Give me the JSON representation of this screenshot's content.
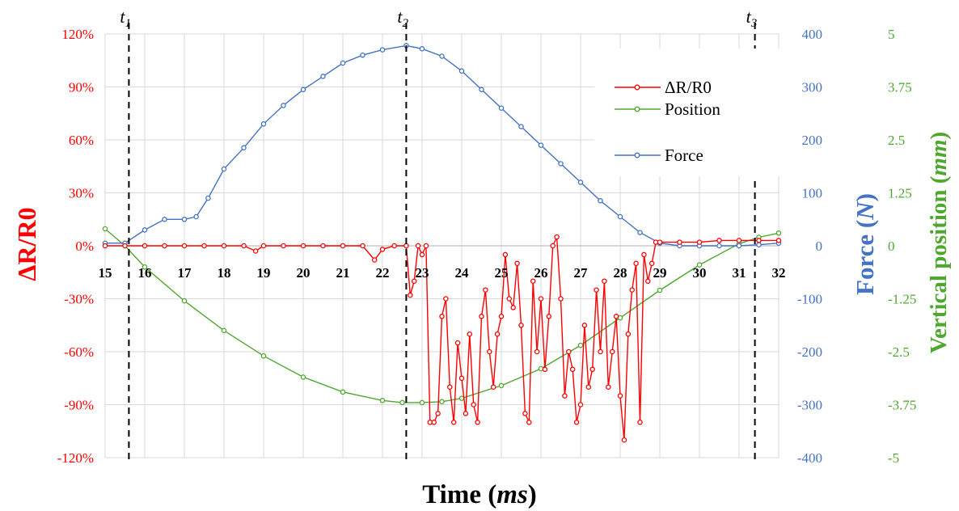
{
  "chart_data": {
    "type": "line",
    "xlabel": "Time",
    "xlabel_unit": "ms",
    "ylabel_left": "ΔR/R0",
    "ylabel_right1": "Force",
    "ylabel_right1_unit": "N",
    "ylabel_right2": "Vertical position",
    "ylabel_right2_unit": "mm",
    "xlim": [
      15,
      32
    ],
    "xticks": [
      "15",
      "16",
      "17",
      "18",
      "19",
      "20",
      "21",
      "22",
      "23",
      "24",
      "25",
      "26",
      "27",
      "28",
      "29",
      "30",
      "31",
      "32"
    ],
    "y_left_lim": [
      -120,
      120
    ],
    "y_left_ticks": [
      "120%",
      "90%",
      "60%",
      "30%",
      "0%",
      "-30%",
      "-60%",
      "-90%",
      "-120%"
    ],
    "y_right1_lim": [
      -400,
      400
    ],
    "y_right1_ticks": [
      "400",
      "300",
      "200",
      "100",
      "0",
      "-100",
      "-200",
      "-300",
      "-400"
    ],
    "y_right2_lim": [
      -5,
      5
    ],
    "y_right2_ticks": [
      "5",
      "3.75",
      "2.5",
      "1.25",
      "0",
      "-1.25",
      "-2.5",
      "-3.75",
      "-5"
    ],
    "grid": true,
    "legend_position": "top-right",
    "legend": [
      "ΔR/R0",
      "Position",
      "Force"
    ],
    "markers": [
      {
        "main": "t",
        "sub": "1",
        "x": 15.6
      },
      {
        "main": "t",
        "sub": "2",
        "x": 22.6
      },
      {
        "main": "t",
        "sub": "3",
        "x": 31.4
      }
    ],
    "series": [
      {
        "name": "ΔR/R0",
        "axis": "left",
        "color": "#ff0000",
        "x": [
          15.0,
          15.5,
          16.0,
          16.5,
          17.0,
          17.5,
          18.0,
          18.5,
          18.8,
          19.0,
          19.5,
          20.0,
          20.5,
          21.0,
          21.5,
          21.8,
          22.0,
          22.3,
          22.6,
          22.7,
          22.8,
          22.9,
          23.0,
          23.1,
          23.2,
          23.3,
          23.4,
          23.5,
          23.6,
          23.7,
          23.8,
          23.9,
          24.0,
          24.1,
          24.2,
          24.3,
          24.4,
          24.5,
          24.6,
          24.7,
          24.8,
          24.9,
          25.0,
          25.1,
          25.2,
          25.3,
          25.4,
          25.5,
          25.6,
          25.7,
          25.8,
          25.9,
          26.0,
          26.1,
          26.2,
          26.3,
          26.4,
          26.5,
          26.6,
          26.7,
          26.8,
          26.9,
          27.0,
          27.1,
          27.2,
          27.3,
          27.4,
          27.5,
          27.6,
          27.7,
          27.8,
          27.9,
          28.0,
          28.1,
          28.2,
          28.3,
          28.4,
          28.5,
          28.6,
          28.7,
          28.8,
          28.9,
          29.0,
          29.5,
          30.0,
          30.5,
          31.0,
          31.5,
          32.0
        ],
        "values": [
          0,
          0,
          0,
          0,
          0,
          0,
          0,
          0,
          -3,
          0,
          0,
          0,
          0,
          0,
          0,
          -8,
          -2,
          0,
          0,
          -28,
          -20,
          0,
          -5,
          0,
          -100,
          -100,
          -95,
          -40,
          -30,
          -80,
          -100,
          -55,
          -75,
          -95,
          -50,
          -90,
          -100,
          -40,
          -25,
          -60,
          -80,
          -50,
          -40,
          -5,
          -30,
          -35,
          -10,
          -45,
          -95,
          -100,
          -20,
          -60,
          -30,
          -70,
          -40,
          0,
          5,
          -30,
          -85,
          -60,
          -70,
          -100,
          -90,
          -45,
          -80,
          -70,
          -25,
          -60,
          -20,
          -80,
          -60,
          -40,
          -85,
          -110,
          -50,
          -25,
          -10,
          -100,
          -5,
          -20,
          -10,
          2,
          2,
          2,
          2,
          3,
          3,
          3,
          3
        ]
      },
      {
        "name": "Position",
        "axis": "right2",
        "color": "#4ea72e",
        "x": [
          15.0,
          15.5,
          16.0,
          17.0,
          18.0,
          19.0,
          20.0,
          21.0,
          22.0,
          22.5,
          23.0,
          23.5,
          24.0,
          25.0,
          26.0,
          27.0,
          28.0,
          29.0,
          30.0,
          31.0,
          31.5,
          32.0
        ],
        "values": [
          0.4,
          0.0,
          -0.5,
          -1.3,
          -2.0,
          -2.6,
          -3.1,
          -3.45,
          -3.65,
          -3.7,
          -3.7,
          -3.68,
          -3.6,
          -3.3,
          -2.9,
          -2.35,
          -1.7,
          -1.05,
          -0.45,
          0.05,
          0.2,
          0.3
        ]
      },
      {
        "name": "Force",
        "axis": "right1",
        "color": "#4472c4",
        "x": [
          15.0,
          15.5,
          16.0,
          16.5,
          17.0,
          17.3,
          17.6,
          18.0,
          18.5,
          19.0,
          19.5,
          20.0,
          20.5,
          21.0,
          21.5,
          22.0,
          22.6,
          23.0,
          23.5,
          24.0,
          24.5,
          25.0,
          25.5,
          26.0,
          26.5,
          27.0,
          27.5,
          28.0,
          28.5,
          29.0,
          29.5,
          30.0,
          30.5,
          31.0,
          31.5,
          32.0
        ],
        "values": [
          5,
          5,
          30,
          50,
          50,
          55,
          90,
          145,
          185,
          230,
          265,
          295,
          320,
          345,
          360,
          370,
          378,
          372,
          358,
          330,
          295,
          260,
          225,
          190,
          155,
          120,
          85,
          55,
          25,
          5,
          0,
          0,
          0,
          0,
          2,
          5
        ]
      }
    ]
  }
}
